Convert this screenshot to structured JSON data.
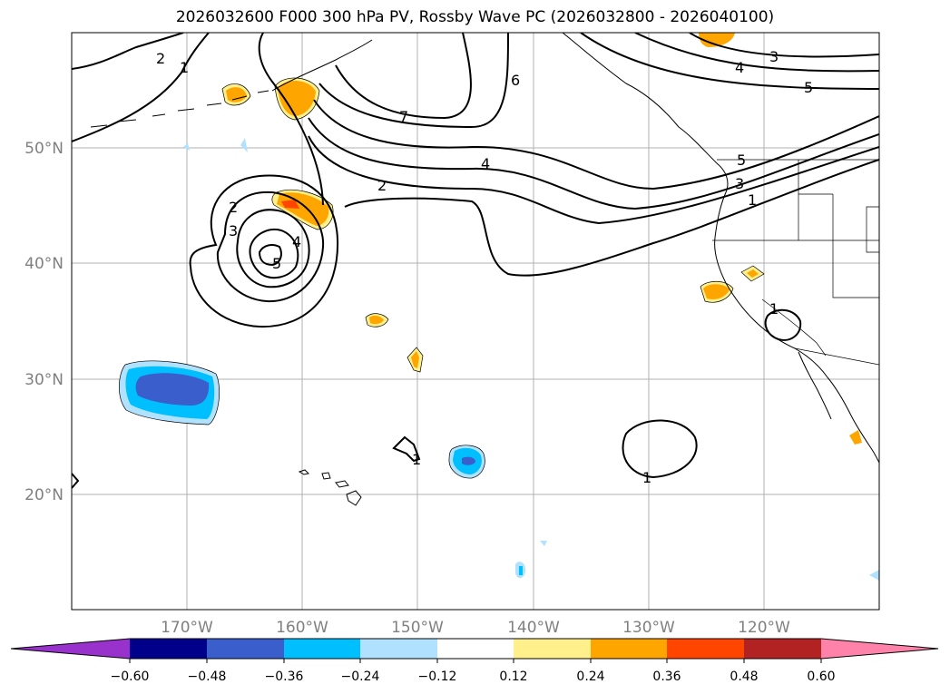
{
  "title": "2026032600 F000 300 hPa PV, Rossby Wave PC (2026032800 - 2026040100)",
  "map": {
    "lon_range": [
      -180,
      -110
    ],
    "lat_range": [
      10,
      60
    ],
    "lat_labels": [
      {
        "lat": 50,
        "text": "50°N"
      },
      {
        "lat": 40,
        "text": "40°N"
      },
      {
        "lat": 30,
        "text": "30°N"
      },
      {
        "lat": 20,
        "text": "20°N"
      }
    ],
    "lon_labels": [
      {
        "lon": -170,
        "text": "170°W"
      },
      {
        "lon": -160,
        "text": "160°W"
      },
      {
        "lon": -150,
        "text": "150°W"
      },
      {
        "lon": -140,
        "text": "140°W"
      },
      {
        "lon": -130,
        "text": "130°W"
      },
      {
        "lon": -120,
        "text": "120°W"
      }
    ],
    "contour_labels": [
      "2",
      "1",
      "6",
      "7",
      "3",
      "4",
      "5",
      "4",
      "2",
      "5",
      "3",
      "1",
      "2",
      "3",
      "4",
      "5",
      "1",
      "1",
      "1"
    ]
  },
  "colorbar": {
    "colors": [
      "#9932cc",
      "#00008b",
      "#3a5fcd",
      "#00bfff",
      "#b0e2ff",
      "#ffffff",
      "#fff08c",
      "#ffa500",
      "#ff4500",
      "#b22222",
      "#ff82ab"
    ],
    "tick_labels": [
      "−0.60",
      "−0.48",
      "−0.36",
      "−0.24",
      "−0.12",
      "0.12",
      "0.24",
      "0.36",
      "0.48",
      "0.60"
    ]
  }
}
